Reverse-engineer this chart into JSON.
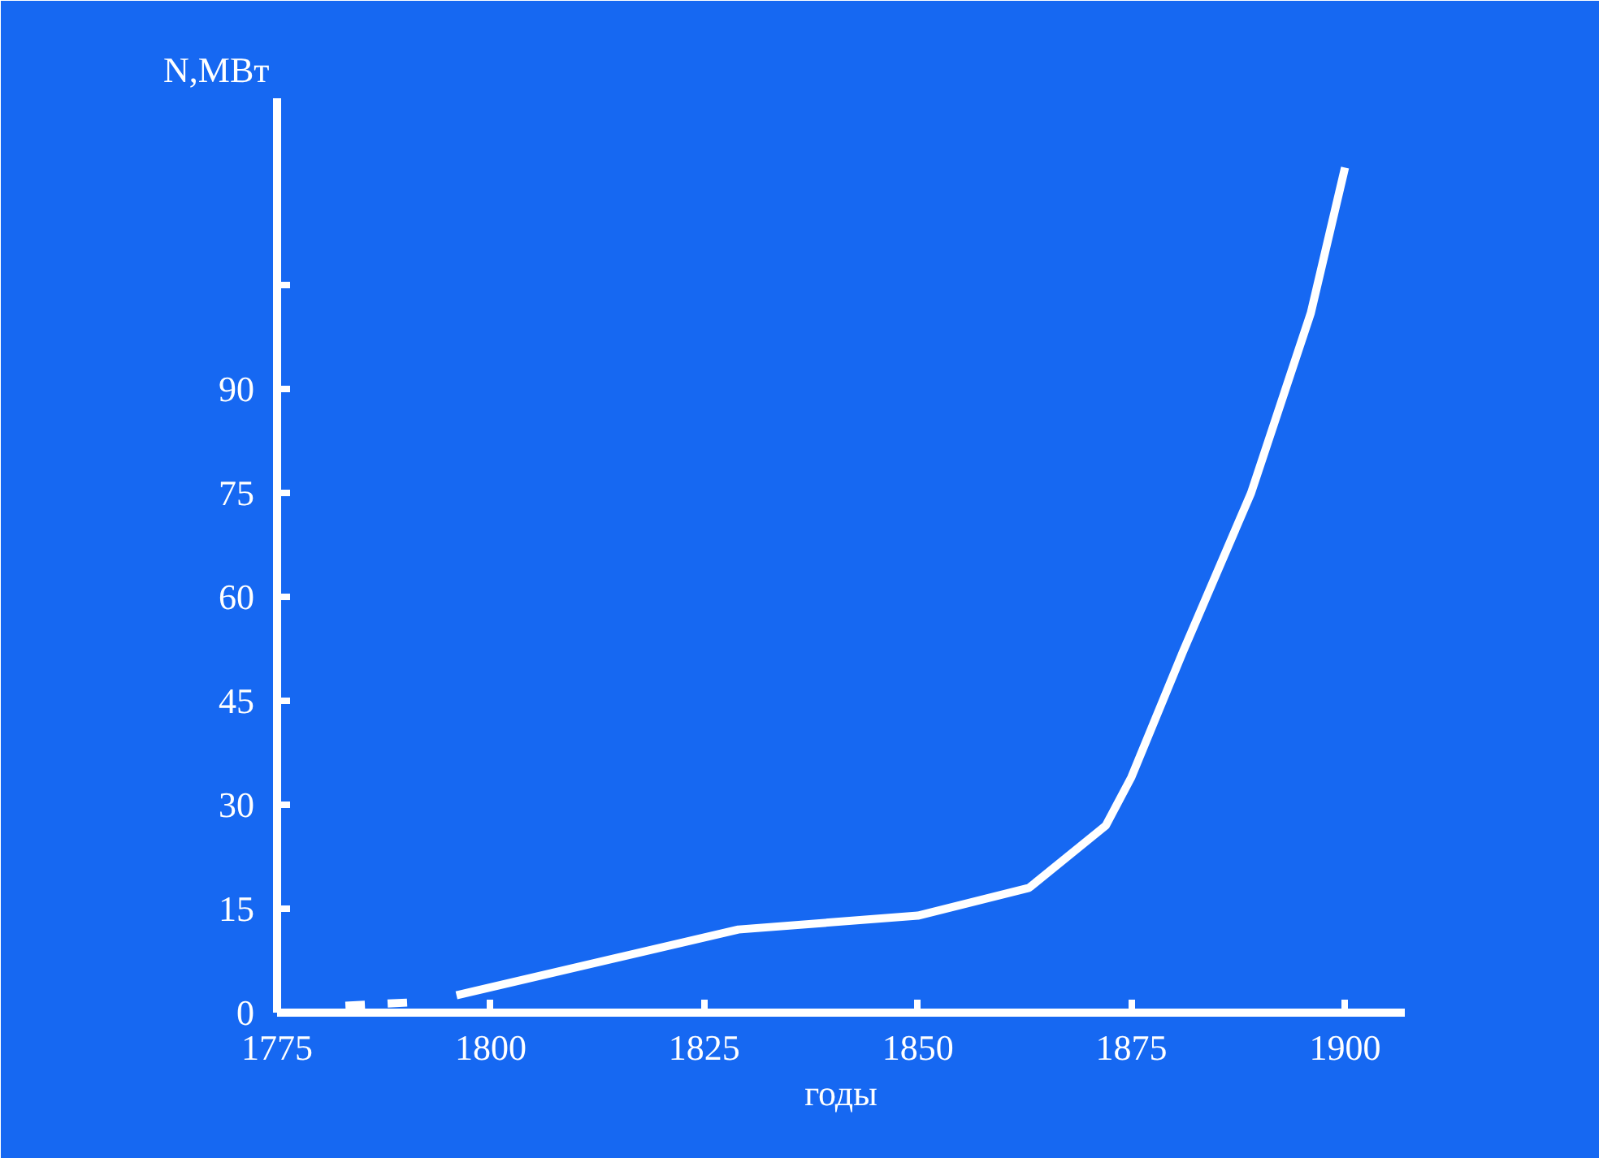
{
  "chart_data": {
    "type": "line",
    "xlabel": "годы",
    "ylabel": "N,MBт",
    "series": [
      {
        "color": "#ffffff",
        "line_style": "dashed",
        "x": [
          1783,
          1791
        ],
        "values": [
          1,
          1.5
        ]
      },
      {
        "color": "#ffffff",
        "line_style": "solid",
        "x": [
          1796,
          1829,
          1850,
          1863,
          1872,
          1875,
          1881,
          1889,
          1896,
          1900
        ],
        "values": [
          2.5,
          12,
          14,
          18,
          27,
          34,
          52,
          75,
          101,
          122
        ]
      }
    ],
    "xlim": [
      1775,
      1907
    ],
    "ylim": [
      0,
      132
    ],
    "xticks": [
      1775,
      1800,
      1825,
      1850,
      1875,
      1900
    ],
    "yticks": [
      0,
      15,
      30,
      45,
      60,
      75,
      90,
      {
        "value": 105,
        "label": null
      }
    ],
    "grid": false,
    "marker": "none"
  }
}
